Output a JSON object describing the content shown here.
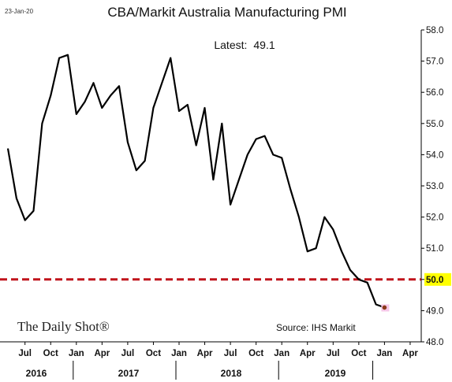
{
  "header": {
    "date_stamp": "23-Jan-20",
    "title": "CBA/Markit Australia Manufacturing PMI",
    "latest_label": "Latest:",
    "latest_value": "49.1"
  },
  "footer": {
    "brand": "The Daily Shot®",
    "source": "Source: IHS Markit"
  },
  "colors": {
    "line": "#000000",
    "reference_line": "#c0141c",
    "highlight": "#ffff00",
    "last_point": "#8b3a1a",
    "last_point_halo": "#f6c8e8"
  },
  "chart_data": {
    "type": "line",
    "title": "CBA/Markit Australia Manufacturing PMI",
    "xlabel": "",
    "ylabel": "",
    "ylim": [
      48.0,
      58.0
    ],
    "grid": false,
    "x": [
      "2016-05",
      "2016-06",
      "2016-07",
      "2016-08",
      "2016-09",
      "2016-10",
      "2016-11",
      "2016-12",
      "2017-01",
      "2017-02",
      "2017-03",
      "2017-04",
      "2017-05",
      "2017-06",
      "2017-07",
      "2017-08",
      "2017-09",
      "2017-10",
      "2017-11",
      "2017-12",
      "2018-01",
      "2018-02",
      "2018-03",
      "2018-04",
      "2018-05",
      "2018-06",
      "2018-07",
      "2018-08",
      "2018-09",
      "2018-10",
      "2018-11",
      "2018-12",
      "2019-01",
      "2019-02",
      "2019-03",
      "2019-04",
      "2019-05",
      "2019-06",
      "2019-07",
      "2019-08",
      "2019-09",
      "2019-10",
      "2019-11",
      "2019-12",
      "2020-01"
    ],
    "values": [
      54.2,
      52.6,
      51.9,
      52.2,
      55.0,
      55.9,
      57.1,
      57.2,
      55.3,
      55.7,
      56.3,
      55.5,
      55.9,
      56.2,
      54.4,
      53.5,
      53.8,
      55.5,
      56.3,
      57.1,
      55.4,
      55.6,
      54.3,
      55.5,
      53.2,
      55.0,
      52.4,
      53.2,
      54.0,
      54.5,
      54.6,
      54.0,
      53.9,
      52.9,
      52.0,
      50.9,
      51.0,
      52.0,
      51.6,
      50.9,
      50.3,
      50.0,
      49.9,
      49.2,
      49.1
    ],
    "yticks": [
      "58.0",
      "57.0",
      "56.0",
      "55.0",
      "54.0",
      "53.0",
      "52.0",
      "51.0",
      "50.0",
      "49.0",
      "48.0"
    ],
    "xtick_labels": [
      "Jul",
      "Oct",
      "Jan",
      "Apr",
      "Jul",
      "Oct",
      "Jan",
      "Apr",
      "Jul",
      "Oct",
      "Jan",
      "Apr",
      "Jul",
      "Oct",
      "Jan",
      "Apr"
    ],
    "xtick_dates": [
      "2016-07",
      "2016-10",
      "2017-01",
      "2017-04",
      "2017-07",
      "2017-10",
      "2018-01",
      "2018-04",
      "2018-07",
      "2018-10",
      "2019-01",
      "2019-04",
      "2019-07",
      "2019-10",
      "2020-01",
      "2020-04"
    ],
    "years": [
      "2016",
      "2017",
      "2018",
      "2019"
    ],
    "year_dividers": [
      "2017-01",
      "2018-01",
      "2019-01",
      "2019-12"
    ],
    "reference_line": {
      "value": 50.0,
      "label": "50.0"
    }
  }
}
